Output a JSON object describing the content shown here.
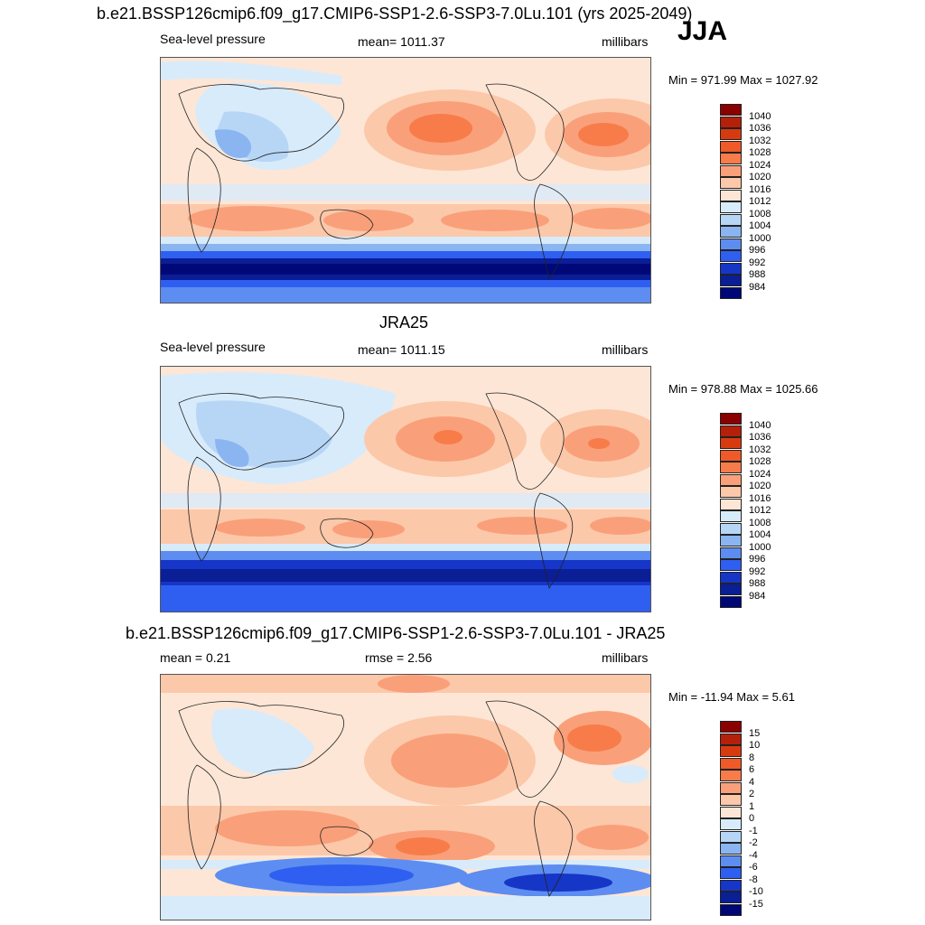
{
  "figure": {
    "run_title": "b.e21.BSSP126cmip6.f09_g17.CMIP6-SSP1-2.6-SSP3-7.0Lu.101 (yrs 2025-2049)",
    "season": "JJA",
    "obs_title": "JRA25",
    "diff_title": "b.e21.BSSP126cmip6.f09_g17.CMIP6-SSP1-2.6-SSP3-7.0Lu.101 - JRA25"
  },
  "panels": [
    {
      "variable": "Sea-level pressure",
      "stat": "mean= 1011.37",
      "units": "millibars",
      "minmax": "Min = 971.99 Max = 1027.92"
    },
    {
      "variable": "Sea-level pressure",
      "stat": "mean= 1011.15",
      "units": "millibars",
      "minmax": "Min = 978.88 Max = 1025.66"
    },
    {
      "stat": "mean =   0.21",
      "stat2": "rmse =   2.56",
      "units": "millibars",
      "minmax": "Min = -11.94 Max =   5.61"
    }
  ],
  "colorbars": {
    "absolute": {
      "labels": [
        "1040",
        "1036",
        "1032",
        "1028",
        "1024",
        "1020",
        "1016",
        "1012",
        "1008",
        "1004",
        "1000",
        "996",
        "992",
        "988",
        "984"
      ],
      "colors": [
        "#8b0000",
        "#b5200a",
        "#d83a10",
        "#f05a28",
        "#f87c4a",
        "#f9a07a",
        "#fcc8aa",
        "#fde6d6",
        "#d8ebfb",
        "#b7d6f6",
        "#8ab5f0",
        "#5d8df0",
        "#2f5ff0",
        "#1636c8",
        "#0a1e96",
        "#000878"
      ]
    },
    "difference": {
      "labels": [
        "15",
        "10",
        "8",
        "6",
        "4",
        "2",
        "1",
        "0",
        "-1",
        "-2",
        "-4",
        "-6",
        "-8",
        "-10",
        "-15"
      ],
      "colors": [
        "#8b0000",
        "#b5200a",
        "#d83a10",
        "#f05a28",
        "#f87c4a",
        "#f9a07a",
        "#fcc8aa",
        "#fde6d6",
        "#d8ebfb",
        "#b7d6f6",
        "#8ab5f0",
        "#5d8df0",
        "#2f5ff0",
        "#1636c8",
        "#0a1e96",
        "#000878"
      ]
    }
  }
}
